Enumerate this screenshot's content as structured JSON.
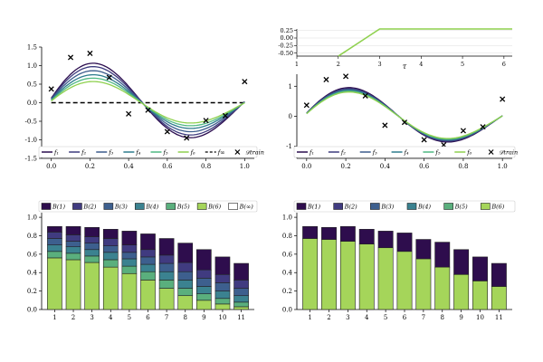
{
  "chart_data": [
    {
      "type": "line",
      "panel": "top-left",
      "xlim": [
        -0.05,
        1.05
      ],
      "ylim": [
        -1.5,
        1.5
      ],
      "xticks": [
        "0.0",
        "0.2",
        "0.4",
        "0.6",
        "0.8",
        "1.0"
      ],
      "yticks": [
        "-1.5",
        "-1.0",
        "-0.5",
        "0.0",
        "0.5",
        "1.0",
        "1.5"
      ],
      "grid": false,
      "series": [
        {
          "name": "f1",
          "color": "#2b0d4f",
          "amp": 1.22,
          "offset": -0.05
        },
        {
          "name": "f2",
          "color": "#3d3a7d",
          "amp": 1.12,
          "offset": -0.05
        },
        {
          "name": "f3",
          "color": "#3b5b8c",
          "amp": 1.0,
          "offset": -0.05
        },
        {
          "name": "f4",
          "color": "#2e7c8e",
          "amp": 0.88,
          "offset": -0.05
        },
        {
          "name": "f5",
          "color": "#4fb883",
          "amp": 0.78,
          "offset": -0.05
        },
        {
          "name": "f6",
          "color": "#8fd14f",
          "amp": 0.68,
          "offset": -0.05
        }
      ],
      "f_inf_level": 0.0,
      "train_points": {
        "x": [
          0.0,
          0.1,
          0.2,
          0.3,
          0.4,
          0.5,
          0.6,
          0.7,
          0.8,
          0.9,
          1.0
        ],
        "y": [
          0.37,
          1.22,
          1.33,
          0.68,
          -0.3,
          -0.2,
          -0.78,
          -0.95,
          -0.48,
          -0.35,
          0.57
        ]
      },
      "legend": [
        "f₁",
        "f₂",
        "f₃",
        "f₄",
        "f₅",
        "f₆",
        "f∞",
        "𝒟train"
      ],
      "legend_sub": [
        "1",
        "2",
        "3",
        "4",
        "5",
        "6",
        "∞",
        "train"
      ]
    },
    {
      "type": "line",
      "panel": "top-right-inset",
      "xlabel": "τ",
      "xlim": [
        1,
        6.2
      ],
      "ylim": [
        -0.6,
        0.3
      ],
      "xticks": [
        "1",
        "2",
        "3",
        "4",
        "5",
        "6"
      ],
      "yticks": [
        "0.25",
        "0.00",
        "-0.25",
        "-0.50"
      ],
      "x": [
        2,
        3,
        6.2
      ],
      "y": [
        -0.6,
        0.3,
        0.3
      ],
      "color": "#8fd14f"
    },
    {
      "type": "line",
      "panel": "top-right",
      "xlim": [
        -0.05,
        1.05
      ],
      "ylim": [
        -1.4,
        1.4
      ],
      "xticks": [
        "0.0",
        "0.2",
        "0.4",
        "0.6",
        "0.8",
        "1.0"
      ],
      "yticks": [
        "-1",
        "0",
        "1"
      ],
      "series": [
        {
          "name": "f1",
          "color": "#2b0d4f",
          "amp": 1.1,
          "offset": -0.05
        },
        {
          "name": "f2",
          "color": "#3d3a7d",
          "amp": 1.06,
          "offset": -0.05
        },
        {
          "name": "f3",
          "color": "#3b5b8c",
          "amp": 1.03,
          "offset": -0.05
        },
        {
          "name": "f4",
          "color": "#2e7c8e",
          "amp": 1.0,
          "offset": -0.05
        },
        {
          "name": "f5",
          "color": "#4fb883",
          "amp": 0.97,
          "offset": -0.05
        },
        {
          "name": "f6",
          "color": "#8fd14f",
          "amp": 0.94,
          "offset": -0.05
        }
      ],
      "train_points": {
        "x": [
          0.0,
          0.1,
          0.2,
          0.3,
          0.4,
          0.5,
          0.6,
          0.7,
          0.8,
          0.9,
          1.0
        ],
        "y": [
          0.37,
          1.22,
          1.33,
          0.68,
          -0.3,
          -0.2,
          -0.78,
          -0.95,
          -0.48,
          -0.35,
          0.57
        ]
      },
      "legend": [
        "f₁",
        "f₂",
        "f₃",
        "f₄",
        "f₅",
        "f₆",
        "𝒟train"
      ],
      "legend_sub": [
        "1",
        "2",
        "3",
        "4",
        "5",
        "6",
        "train"
      ]
    },
    {
      "type": "bar",
      "panel": "bottom-left",
      "stacked": true,
      "categories": [
        "1",
        "2",
        "3",
        "4",
        "5",
        "6",
        "7",
        "8",
        "9",
        "10",
        "11"
      ],
      "ylim": [
        0,
        1.05
      ],
      "yticks": [
        "0.0",
        "0.2",
        "0.4",
        "0.6",
        "0.8",
        "1.0"
      ],
      "legend": [
        "B(1)",
        "B(2)",
        "B(3)",
        "B(4)",
        "B(5)",
        "B(6)",
        "B(∞)"
      ],
      "legend_sup": [
        "(1)",
        "(2)",
        "(3)",
        "(4)",
        "(5)",
        "(6)",
        "(∞)"
      ],
      "series": [
        {
          "name": "B(6)",
          "color": "#a5d55a",
          "values": [
            0.56,
            0.54,
            0.51,
            0.46,
            0.39,
            0.32,
            0.23,
            0.15,
            0.1,
            0.06,
            0.03
          ]
        },
        {
          "name": "B(5)",
          "color": "#5aaf7d",
          "values": [
            0.07,
            0.07,
            0.07,
            0.08,
            0.08,
            0.09,
            0.09,
            0.08,
            0.07,
            0.06,
            0.05
          ]
        },
        {
          "name": "B(4)",
          "color": "#3b8290",
          "values": [
            0.07,
            0.07,
            0.07,
            0.08,
            0.08,
            0.08,
            0.09,
            0.09,
            0.08,
            0.08,
            0.07
          ]
        },
        {
          "name": "B(3)",
          "color": "#3d5f8e",
          "values": [
            0.07,
            0.06,
            0.07,
            0.07,
            0.07,
            0.08,
            0.09,
            0.09,
            0.09,
            0.09,
            0.08
          ]
        },
        {
          "name": "B(2)",
          "color": "#403b80",
          "values": [
            0.07,
            0.07,
            0.07,
            0.08,
            0.08,
            0.08,
            0.09,
            0.1,
            0.09,
            0.09,
            0.09
          ]
        },
        {
          "name": "B(1)",
          "color": "#2e0d4d",
          "values": [
            0.06,
            0.09,
            0.1,
            0.1,
            0.15,
            0.17,
            0.18,
            0.21,
            0.22,
            0.19,
            0.18
          ]
        }
      ]
    },
    {
      "type": "bar",
      "panel": "bottom-right",
      "stacked": true,
      "categories": [
        "1",
        "2",
        "3",
        "4",
        "5",
        "6",
        "7",
        "8",
        "9",
        "10",
        "11"
      ],
      "ylim": [
        0,
        1.05
      ],
      "yticks": [
        "0.0",
        "0.2",
        "0.4",
        "0.6",
        "0.8",
        "1.0"
      ],
      "legend": [
        "B(1)",
        "B(2)",
        "B(3)",
        "B(4)",
        "B(5)",
        "B(6)"
      ],
      "legend_sup": [
        "(1)",
        "(2)",
        "(3)",
        "(4)",
        "(5)",
        "(6)"
      ],
      "series": [
        {
          "name": "B(6)",
          "color": "#a5d55a",
          "values": [
            0.77,
            0.76,
            0.74,
            0.71,
            0.67,
            0.63,
            0.55,
            0.46,
            0.38,
            0.31,
            0.25
          ]
        },
        {
          "name": "B(1)",
          "color": "#2e0d4d",
          "values": [
            0.13,
            0.13,
            0.16,
            0.16,
            0.18,
            0.2,
            0.21,
            0.27,
            0.27,
            0.26,
            0.25
          ]
        }
      ]
    }
  ]
}
